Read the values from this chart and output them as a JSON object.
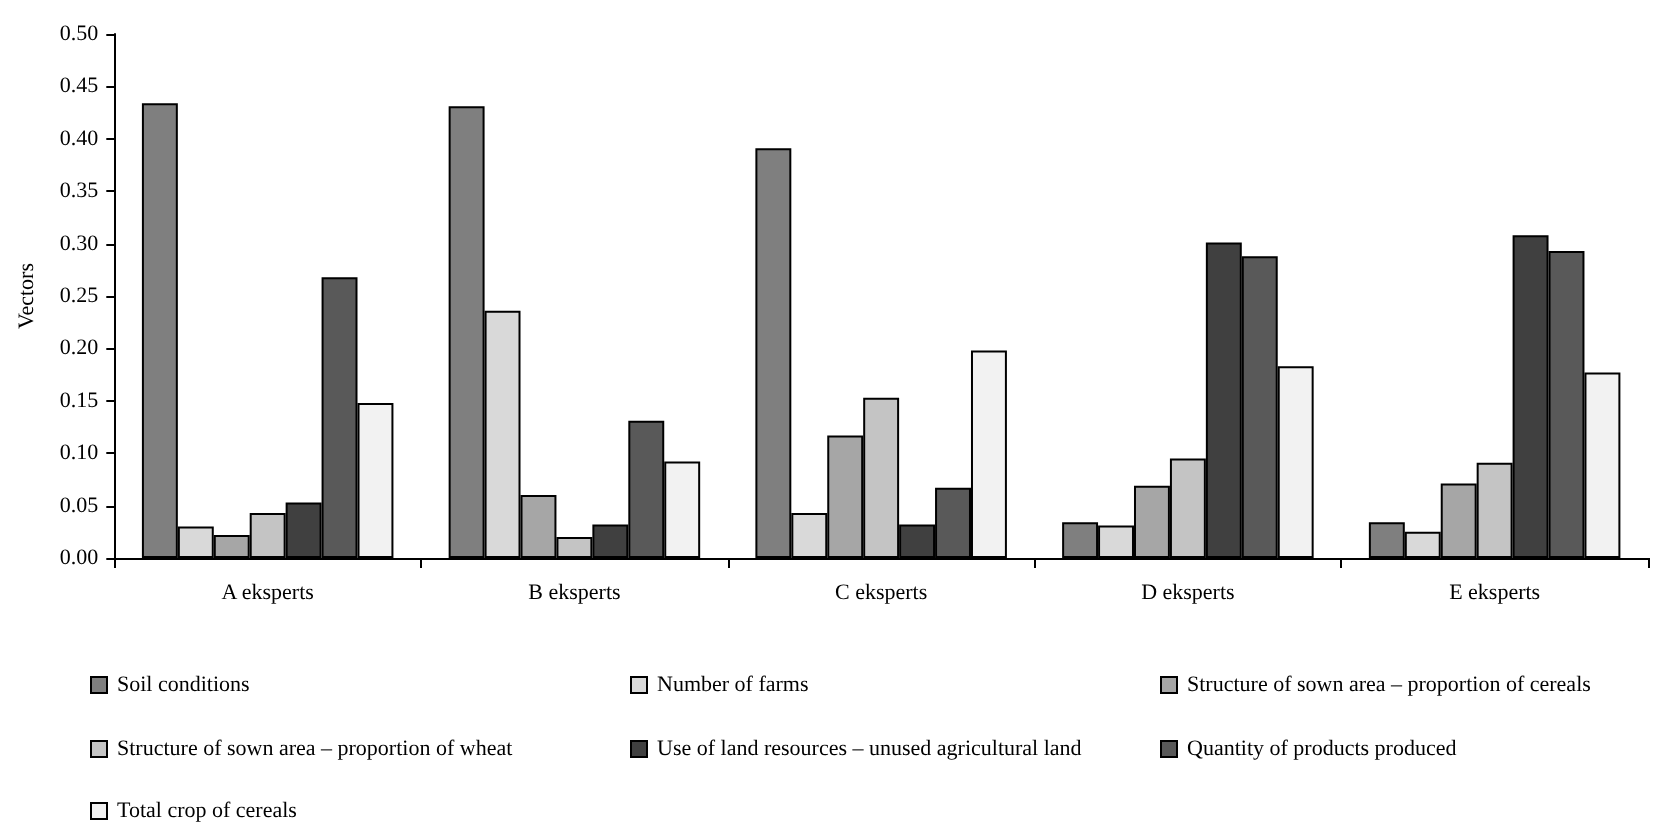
{
  "chart_data": {
    "type": "bar",
    "ylabel": "Vectors",
    "categories": [
      "A eksperts",
      "B eksperts",
      "C eksperts",
      "D eksperts",
      "E eksperts"
    ],
    "series": [
      {
        "name": "Soil conditions",
        "color": "#7f7f7f",
        "values": [
          0.434,
          0.431,
          0.391,
          0.034,
          0.034
        ]
      },
      {
        "name": "Number of farms",
        "color": "#d9d9d9",
        "values": [
          0.03,
          0.236,
          0.043,
          0.031,
          0.025
        ]
      },
      {
        "name": "Structure of sown area – proportion of cereals",
        "color": "#a6a6a6",
        "values": [
          0.022,
          0.06,
          0.117,
          0.069,
          0.071
        ]
      },
      {
        "name": "Structure of sown area – proportion of wheat",
        "color": "#c4c4c4",
        "values": [
          0.043,
          0.02,
          0.153,
          0.095,
          0.091
        ]
      },
      {
        "name": "Use of land resources – unused agricultural land",
        "color": "#404040",
        "values": [
          0.053,
          0.032,
          0.032,
          0.301,
          0.308
        ]
      },
      {
        "name": "Quantity of products produced",
        "color": "#595959",
        "values": [
          0.268,
          0.131,
          0.067,
          0.288,
          0.293
        ]
      },
      {
        "name": "Total crop of cereals",
        "color": "#f2f2f2",
        "values": [
          0.148,
          0.092,
          0.198,
          0.183,
          0.177
        ]
      }
    ],
    "ylim": [
      0,
      0.5
    ],
    "yticks": [
      {
        "value": 0,
        "label": "0.00"
      },
      {
        "value": 0.05,
        "label": "0.05"
      },
      {
        "value": 0.1,
        "label": "0.10"
      },
      {
        "value": 0.15,
        "label": "0.15"
      },
      {
        "value": 0.2,
        "label": "0.20"
      },
      {
        "value": 0.25,
        "label": "0.25"
      },
      {
        "value": 0.3,
        "label": "0.30"
      },
      {
        "value": 0.35,
        "label": "0.35"
      },
      {
        "value": 0.4,
        "label": "0.40"
      },
      {
        "value": 0.45,
        "label": "0.45"
      },
      {
        "value": 0.5,
        "label": "0.50"
      }
    ],
    "grid": false,
    "legend": "bottom"
  }
}
